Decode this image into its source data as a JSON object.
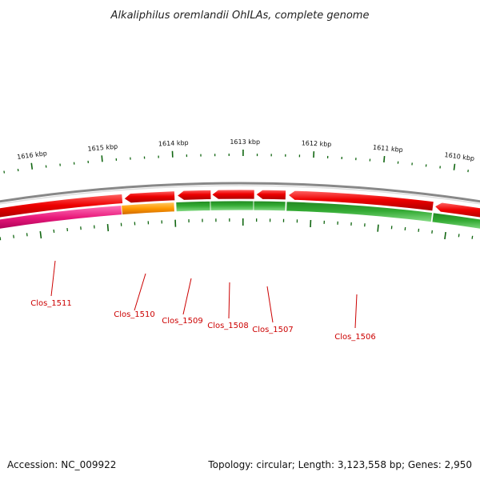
{
  "title": "Alkaliphilus oremlandii OhILAs, complete genome",
  "footer": {
    "accession": "Accession: NC_009922",
    "summary": "Topology: circular; Length: 3,123,558 bp; Genes: 2,950"
  },
  "scale": {
    "labels": [
      "1616 kbp",
      "1615 kbp",
      "1614 kbp",
      "1613 kbp",
      "1612 kbp",
      "1611 kbp",
      "1610 kbp"
    ]
  },
  "genes": [
    {
      "name": "Clos_1511",
      "strand": "reverse",
      "color": "#e8187a"
    },
    {
      "name": "Clos_1510",
      "strand": "reverse",
      "color": "#ff9900"
    },
    {
      "name": "Clos_1509",
      "strand": "reverse",
      "color": "#33aa33"
    },
    {
      "name": "Clos_1508",
      "strand": "reverse",
      "color": "#33aa33"
    },
    {
      "name": "Clos_1507",
      "strand": "reverse",
      "color": "#33aa33"
    },
    {
      "name": "Clos_1506",
      "strand": "reverse",
      "color": "#33aa33"
    }
  ],
  "colors": {
    "forward_cds": "#ee0000",
    "backbone": "#888888",
    "tick": "#116611",
    "label": "#cc0000"
  }
}
